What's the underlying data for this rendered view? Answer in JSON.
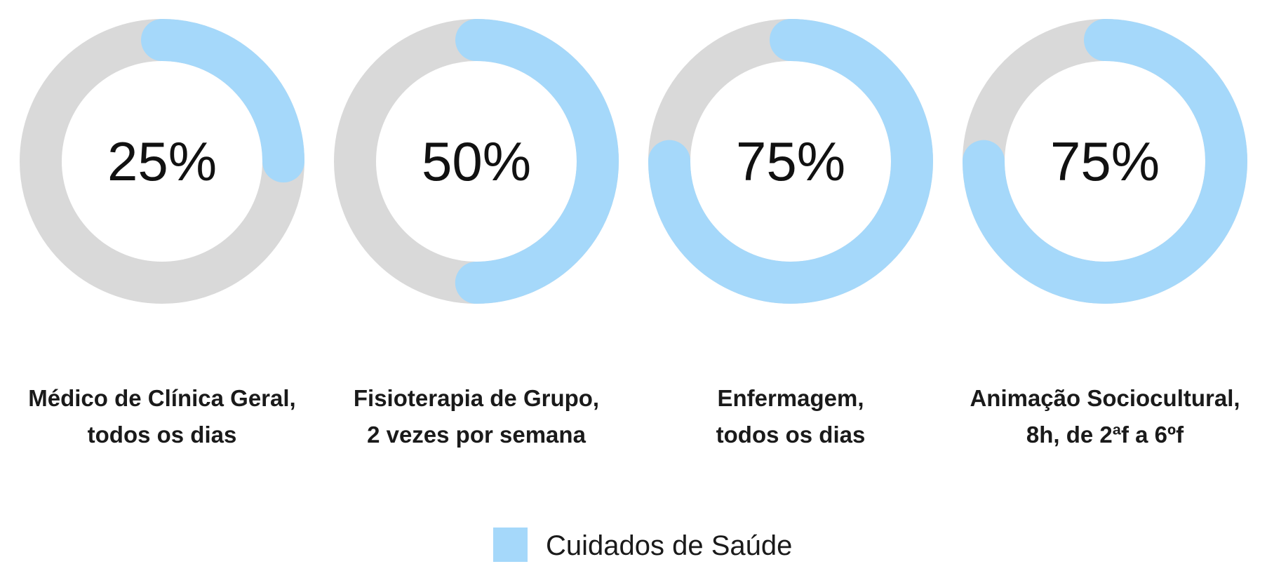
{
  "chart_data": {
    "type": "pie",
    "variant": "donut-progress",
    "unit": "%",
    "max": 100,
    "items": [
      {
        "label_lines": [
          "Médico de Clínica Geral,",
          "todos os dias"
        ],
        "value": 25,
        "display": "25%"
      },
      {
        "label_lines": [
          "Fisioterapia de Grupo,",
          "2 vezes por semana"
        ],
        "value": 50,
        "display": "50%"
      },
      {
        "label_lines": [
          "Enfermagem,",
          "todos os dias"
        ],
        "value": 75,
        "display": "75%"
      },
      {
        "label_lines": [
          "Animação Sociocultural,",
          "8h, de 2ªf a 6ºf"
        ],
        "value": 75,
        "display": "75%"
      }
    ],
    "series": [
      {
        "name": "Cuidados de Saúde",
        "color": "#a5d8fa"
      }
    ],
    "track_color": "#d9d9d9",
    "legend": {
      "position": "bottom-center"
    }
  }
}
